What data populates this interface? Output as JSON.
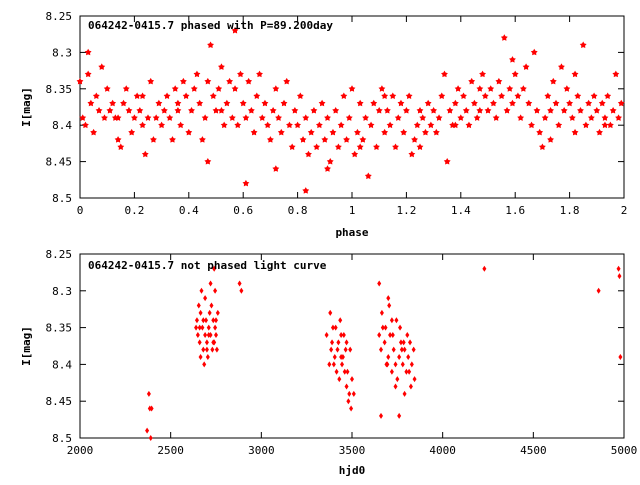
{
  "chart_data": [
    {
      "type": "scatter",
      "title": "064242-0415.7 phased with P=89.200day",
      "xlabel": "phase",
      "ylabel": "I[mag]",
      "xlim": [
        0,
        2
      ],
      "ylim": [
        8.25,
        8.5
      ],
      "y_inverted": true,
      "xticks": [
        0,
        0.2,
        0.4,
        0.6,
        0.8,
        1,
        1.2,
        1.4,
        1.6,
        1.8,
        2
      ],
      "xtick_labels": [
        "0",
        "0.2",
        "0.4",
        "0.6",
        "0.8",
        "1",
        "1.2",
        "1.4",
        "1.6",
        "1.8",
        "2"
      ],
      "yticks": [
        8.25,
        8.3,
        8.35,
        8.4,
        8.45,
        8.5
      ],
      "ytick_labels": [
        "8.25",
        "8.3",
        "8.35",
        "8.4",
        "8.45",
        "8.5"
      ],
      "grid": false,
      "marker_color": "#ff0000",
      "marker": "star",
      "points": [
        [
          0.0,
          8.34
        ],
        [
          0.01,
          8.39
        ],
        [
          0.02,
          8.4
        ],
        [
          0.03,
          8.3
        ],
        [
          0.04,
          8.37
        ],
        [
          0.05,
          8.41
        ],
        [
          0.06,
          8.36
        ],
        [
          0.07,
          8.38
        ],
        [
          0.08,
          8.32
        ],
        [
          0.09,
          8.39
        ],
        [
          0.1,
          8.35
        ],
        [
          0.11,
          8.38
        ],
        [
          0.12,
          8.37
        ],
        [
          0.13,
          8.39
        ],
        [
          0.14,
          8.42
        ],
        [
          0.15,
          8.43
        ],
        [
          0.16,
          8.37
        ],
        [
          0.17,
          8.35
        ],
        [
          0.18,
          8.38
        ],
        [
          0.19,
          8.41
        ],
        [
          0.2,
          8.39
        ],
        [
          0.21,
          8.36
        ],
        [
          0.22,
          8.38
        ],
        [
          0.23,
          8.4
        ],
        [
          0.24,
          8.44
        ],
        [
          0.25,
          8.39
        ],
        [
          0.26,
          8.34
        ],
        [
          0.27,
          8.42
        ],
        [
          0.28,
          8.39
        ],
        [
          0.29,
          8.37
        ],
        [
          0.3,
          8.4
        ],
        [
          0.31,
          8.38
        ],
        [
          0.32,
          8.36
        ],
        [
          0.33,
          8.39
        ],
        [
          0.34,
          8.42
        ],
        [
          0.35,
          8.35
        ],
        [
          0.36,
          8.37
        ],
        [
          0.37,
          8.4
        ],
        [
          0.38,
          8.34
        ],
        [
          0.39,
          8.36
        ],
        [
          0.4,
          8.41
        ],
        [
          0.41,
          8.38
        ],
        [
          0.42,
          8.35
        ],
        [
          0.43,
          8.33
        ],
        [
          0.44,
          8.37
        ],
        [
          0.45,
          8.42
        ],
        [
          0.46,
          8.39
        ],
        [
          0.47,
          8.34
        ],
        [
          0.48,
          8.29
        ],
        [
          0.49,
          8.36
        ],
        [
          0.5,
          8.38
        ],
        [
          0.51,
          8.35
        ],
        [
          0.52,
          8.32
        ],
        [
          0.53,
          8.4
        ],
        [
          0.54,
          8.37
        ],
        [
          0.55,
          8.34
        ],
        [
          0.56,
          8.39
        ],
        [
          0.57,
          8.35
        ],
        [
          0.58,
          8.4
        ],
        [
          0.59,
          8.33
        ],
        [
          0.6,
          8.37
        ],
        [
          0.61,
          8.39
        ],
        [
          0.62,
          8.34
        ],
        [
          0.63,
          8.38
        ],
        [
          0.64,
          8.41
        ],
        [
          0.65,
          8.36
        ],
        [
          0.66,
          8.33
        ],
        [
          0.67,
          8.39
        ],
        [
          0.68,
          8.37
        ],
        [
          0.69,
          8.4
        ],
        [
          0.7,
          8.42
        ],
        [
          0.71,
          8.38
        ],
        [
          0.72,
          8.35
        ],
        [
          0.73,
          8.39
        ],
        [
          0.74,
          8.41
        ],
        [
          0.75,
          8.37
        ],
        [
          0.76,
          8.34
        ],
        [
          0.77,
          8.4
        ],
        [
          0.78,
          8.43
        ],
        [
          0.79,
          8.38
        ],
        [
          0.8,
          8.4
        ],
        [
          0.81,
          8.36
        ],
        [
          0.82,
          8.42
        ],
        [
          0.83,
          8.39
        ],
        [
          0.84,
          8.44
        ],
        [
          0.85,
          8.41
        ],
        [
          0.86,
          8.38
        ],
        [
          0.87,
          8.43
        ],
        [
          0.88,
          8.4
        ],
        [
          0.89,
          8.37
        ],
        [
          0.9,
          8.42
        ],
        [
          0.91,
          8.39
        ],
        [
          0.92,
          8.45
        ],
        [
          0.93,
          8.41
        ],
        [
          0.94,
          8.38
        ],
        [
          0.95,
          8.43
        ],
        [
          0.96,
          8.4
        ],
        [
          0.97,
          8.36
        ],
        [
          0.98,
          8.42
        ],
        [
          0.99,
          8.39
        ],
        [
          1.0,
          8.35
        ],
        [
          1.01,
          8.44
        ],
        [
          1.02,
          8.41
        ],
        [
          1.03,
          8.37
        ],
        [
          1.04,
          8.42
        ],
        [
          1.05,
          8.39
        ],
        [
          1.06,
          8.47
        ],
        [
          1.07,
          8.4
        ],
        [
          1.08,
          8.37
        ],
        [
          1.09,
          8.43
        ],
        [
          1.1,
          8.38
        ],
        [
          1.11,
          8.35
        ],
        [
          1.12,
          8.41
        ],
        [
          1.13,
          8.38
        ],
        [
          1.14,
          8.4
        ],
        [
          1.15,
          8.36
        ],
        [
          1.16,
          8.43
        ],
        [
          1.17,
          8.39
        ],
        [
          1.18,
          8.37
        ],
        [
          1.19,
          8.41
        ],
        [
          1.2,
          8.38
        ],
        [
          1.21,
          8.36
        ],
        [
          1.22,
          8.44
        ],
        [
          1.23,
          8.42
        ],
        [
          1.24,
          8.4
        ],
        [
          1.25,
          8.43
        ],
        [
          1.26,
          8.39
        ],
        [
          1.27,
          8.41
        ],
        [
          1.28,
          8.37
        ],
        [
          1.29,
          8.4
        ],
        [
          1.3,
          8.38
        ],
        [
          1.31,
          8.41
        ],
        [
          1.32,
          8.39
        ],
        [
          1.33,
          8.36
        ],
        [
          1.34,
          8.33
        ],
        [
          1.35,
          8.45
        ],
        [
          1.36,
          8.38
        ],
        [
          1.37,
          8.4
        ],
        [
          1.38,
          8.37
        ],
        [
          1.39,
          8.35
        ],
        [
          1.4,
          8.39
        ],
        [
          1.41,
          8.36
        ],
        [
          1.42,
          8.38
        ],
        [
          1.43,
          8.4
        ],
        [
          1.44,
          8.34
        ],
        [
          1.45,
          8.37
        ],
        [
          1.46,
          8.39
        ],
        [
          1.47,
          8.35
        ],
        [
          1.48,
          8.33
        ],
        [
          1.49,
          8.36
        ],
        [
          1.5,
          8.38
        ],
        [
          1.51,
          8.35
        ],
        [
          1.52,
          8.37
        ],
        [
          1.53,
          8.39
        ],
        [
          1.54,
          8.34
        ],
        [
          1.55,
          8.36
        ],
        [
          1.56,
          8.28
        ],
        [
          1.57,
          8.38
        ],
        [
          1.58,
          8.35
        ],
        [
          1.59,
          8.37
        ],
        [
          1.6,
          8.33
        ],
        [
          1.61,
          8.36
        ],
        [
          1.62,
          8.39
        ],
        [
          1.63,
          8.35
        ],
        [
          1.64,
          8.32
        ],
        [
          1.65,
          8.37
        ],
        [
          1.66,
          8.4
        ],
        [
          1.67,
          8.3
        ],
        [
          1.68,
          8.38
        ],
        [
          1.69,
          8.41
        ],
        [
          1.7,
          8.43
        ],
        [
          1.71,
          8.39
        ],
        [
          1.72,
          8.36
        ],
        [
          1.73,
          8.38
        ],
        [
          1.74,
          8.34
        ],
        [
          1.75,
          8.37
        ],
        [
          1.76,
          8.4
        ],
        [
          1.77,
          8.32
        ],
        [
          1.78,
          8.38
        ],
        [
          1.79,
          8.35
        ],
        [
          1.8,
          8.37
        ],
        [
          1.81,
          8.39
        ],
        [
          1.82,
          8.41
        ],
        [
          1.83,
          8.36
        ],
        [
          1.84,
          8.38
        ],
        [
          1.85,
          8.29
        ],
        [
          1.86,
          8.4
        ],
        [
          1.87,
          8.37
        ],
        [
          1.88,
          8.39
        ],
        [
          1.89,
          8.36
        ],
        [
          1.9,
          8.38
        ],
        [
          1.91,
          8.41
        ],
        [
          1.92,
          8.37
        ],
        [
          1.93,
          8.39
        ],
        [
          1.94,
          8.36
        ],
        [
          1.95,
          8.4
        ],
        [
          1.96,
          8.38
        ],
        [
          1.97,
          8.33
        ],
        [
          1.98,
          8.39
        ],
        [
          1.99,
          8.37
        ],
        [
          0.03,
          8.33
        ],
        [
          0.14,
          8.39
        ],
        [
          0.23,
          8.36
        ],
        [
          0.36,
          8.38
        ],
        [
          0.47,
          8.45
        ],
        [
          0.52,
          8.38
        ],
        [
          0.61,
          8.48
        ],
        [
          0.72,
          8.46
        ],
        [
          0.83,
          8.49
        ],
        [
          0.91,
          8.46
        ],
        [
          1.03,
          8.43
        ],
        [
          1.12,
          8.36
        ],
        [
          1.25,
          8.38
        ],
        [
          1.38,
          8.4
        ],
        [
          1.47,
          8.38
        ],
        [
          1.59,
          8.31
        ],
        [
          1.73,
          8.42
        ],
        [
          1.82,
          8.33
        ],
        [
          1.93,
          8.4
        ],
        [
          0.57,
          8.27
        ]
      ]
    },
    {
      "type": "scatter",
      "title": "064242-0415.7 not phased light curve",
      "xlabel": "hjd0",
      "ylabel": "I[mag]",
      "xlim": [
        2000,
        5000
      ],
      "ylim": [
        8.25,
        8.5
      ],
      "y_inverted": true,
      "xticks": [
        2000,
        2500,
        3000,
        3500,
        4000,
        4500,
        5000
      ],
      "xtick_labels": [
        "2000",
        "2500",
        "3000",
        "3500",
        "4000",
        "4500",
        "5000"
      ],
      "yticks": [
        8.25,
        8.3,
        8.35,
        8.4,
        8.45,
        8.5
      ],
      "ytick_labels": [
        "8.25",
        "8.3",
        "8.35",
        "8.4",
        "8.45",
        "8.5"
      ],
      "grid": false,
      "marker_color": "#ff0000",
      "marker": "diamond",
      "points": [
        [
          2370,
          8.49
        ],
        [
          2380,
          8.44
        ],
        [
          2385,
          8.46
        ],
        [
          2390,
          8.5
        ],
        [
          2395,
          8.46
        ],
        [
          2640,
          8.35
        ],
        [
          2645,
          8.34
        ],
        [
          2650,
          8.36
        ],
        [
          2655,
          8.32
        ],
        [
          2660,
          8.37
        ],
        [
          2665,
          8.33
        ],
        [
          2670,
          8.3
        ],
        [
          2675,
          8.35
        ],
        [
          2680,
          8.38
        ],
        [
          2685,
          8.4
        ],
        [
          2690,
          8.36
        ],
        [
          2695,
          8.34
        ],
        [
          2700,
          8.37
        ],
        [
          2705,
          8.39
        ],
        [
          2710,
          8.35
        ],
        [
          2715,
          8.33
        ],
        [
          2720,
          8.36
        ],
        [
          2725,
          8.32
        ],
        [
          2730,
          8.38
        ],
        [
          2735,
          8.34
        ],
        [
          2740,
          8.37
        ],
        [
          2745,
          8.35
        ],
        [
          2750,
          8.36
        ],
        [
          2755,
          8.38
        ],
        [
          2760,
          8.33
        ],
        [
          2665,
          8.39
        ],
        [
          2690,
          8.31
        ],
        [
          2720,
          8.29
        ],
        [
          2745,
          8.3
        ],
        [
          2700,
          8.38
        ],
        [
          2660,
          8.35
        ],
        [
          2680,
          8.34
        ],
        [
          2710,
          8.36
        ],
        [
          2735,
          8.37
        ],
        [
          2750,
          8.34
        ],
        [
          2740,
          8.27
        ],
        [
          2880,
          8.29
        ],
        [
          2890,
          8.3
        ],
        [
          3360,
          8.36
        ],
        [
          3380,
          8.33
        ],
        [
          3390,
          8.37
        ],
        [
          3400,
          8.4
        ],
        [
          3410,
          8.35
        ],
        [
          3420,
          8.38
        ],
        [
          3430,
          8.42
        ],
        [
          3440,
          8.36
        ],
        [
          3450,
          8.39
        ],
        [
          3460,
          8.41
        ],
        [
          3470,
          8.43
        ],
        [
          3480,
          8.45
        ],
        [
          3490,
          8.38
        ],
        [
          3500,
          8.42
        ],
        [
          3510,
          8.44
        ],
        [
          3405,
          8.39
        ],
        [
          3415,
          8.41
        ],
        [
          3425,
          8.37
        ],
        [
          3435,
          8.34
        ],
        [
          3445,
          8.4
        ],
        [
          3455,
          8.36
        ],
        [
          3465,
          8.38
        ],
        [
          3475,
          8.41
        ],
        [
          3485,
          8.44
        ],
        [
          3495,
          8.46
        ],
        [
          3395,
          8.35
        ],
        [
          3385,
          8.38
        ],
        [
          3375,
          8.4
        ],
        [
          3470,
          8.37
        ],
        [
          3440,
          8.39
        ],
        [
          3650,
          8.36
        ],
        [
          3660,
          8.38
        ],
        [
          3670,
          8.35
        ],
        [
          3680,
          8.37
        ],
        [
          3690,
          8.4
        ],
        [
          3700,
          8.39
        ],
        [
          3710,
          8.36
        ],
        [
          3720,
          8.41
        ],
        [
          3730,
          8.38
        ],
        [
          3740,
          8.4
        ],
        [
          3750,
          8.42
        ],
        [
          3760,
          8.39
        ],
        [
          3770,
          8.37
        ],
        [
          3780,
          8.4
        ],
        [
          3790,
          8.38
        ],
        [
          3800,
          8.41
        ],
        [
          3810,
          8.39
        ],
        [
          3820,
          8.37
        ],
        [
          3830,
          8.4
        ],
        [
          3840,
          8.38
        ],
        [
          3665,
          8.33
        ],
        [
          3685,
          8.35
        ],
        [
          3705,
          8.32
        ],
        [
          3725,
          8.36
        ],
        [
          3745,
          8.34
        ],
        [
          3765,
          8.35
        ],
        [
          3785,
          8.37
        ],
        [
          3805,
          8.36
        ],
        [
          3825,
          8.43
        ],
        [
          3845,
          8.42
        ],
        [
          3700,
          8.31
        ],
        [
          3720,
          8.34
        ],
        [
          3740,
          8.43
        ],
        [
          3760,
          8.47
        ],
        [
          3790,
          8.44
        ],
        [
          3660,
          8.47
        ],
        [
          3650,
          8.29
        ],
        [
          3695,
          8.4
        ],
        [
          3775,
          8.38
        ],
        [
          3815,
          8.41
        ],
        [
          4230,
          8.27
        ],
        [
          4860,
          8.3
        ],
        [
          4970,
          8.27
        ],
        [
          4975,
          8.28
        ],
        [
          4980,
          8.39
        ]
      ]
    }
  ]
}
